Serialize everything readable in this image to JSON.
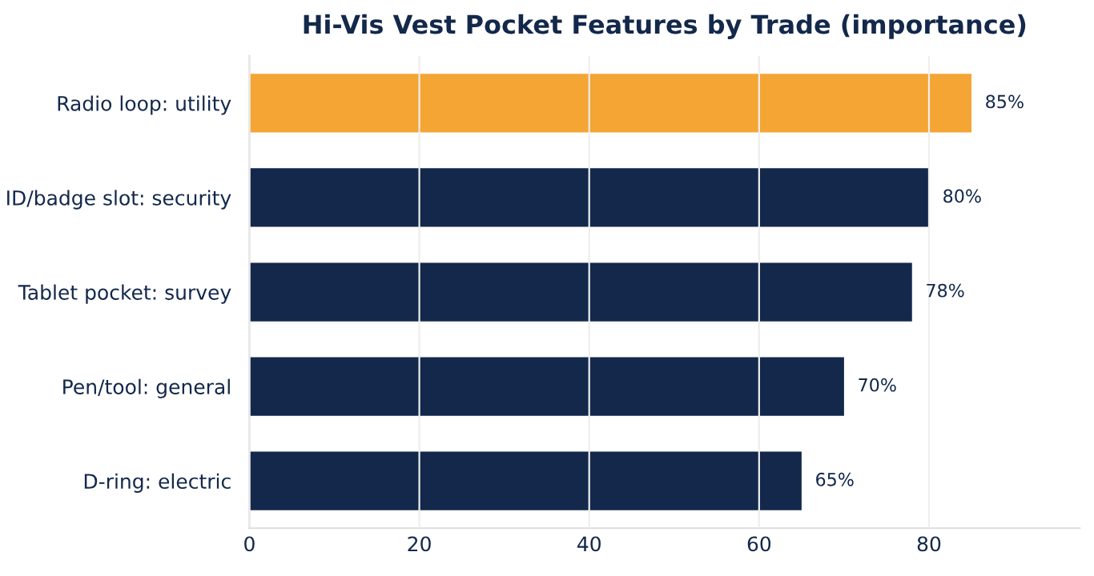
{
  "chart_data": {
    "type": "bar",
    "orientation": "horizontal",
    "title": "Hi-Vis Vest Pocket Features by Trade (importance)",
    "categories": [
      "Radio loop: utility",
      "ID/badge slot: security",
      "Tablet pocket: survey",
      "Pen/tool: general",
      "D-ring: electric"
    ],
    "values": [
      85,
      80,
      78,
      70,
      65
    ],
    "colors": [
      "#f4a534",
      "#13284b",
      "#13284b",
      "#13284b",
      "#13284b"
    ],
    "value_labels": [
      "85%",
      "80%",
      "78%",
      "70%",
      "65%"
    ],
    "xlim": [
      0,
      97.75
    ],
    "xticks": [
      0,
      20,
      40,
      60,
      80
    ],
    "grid": "x",
    "legend": false
  }
}
